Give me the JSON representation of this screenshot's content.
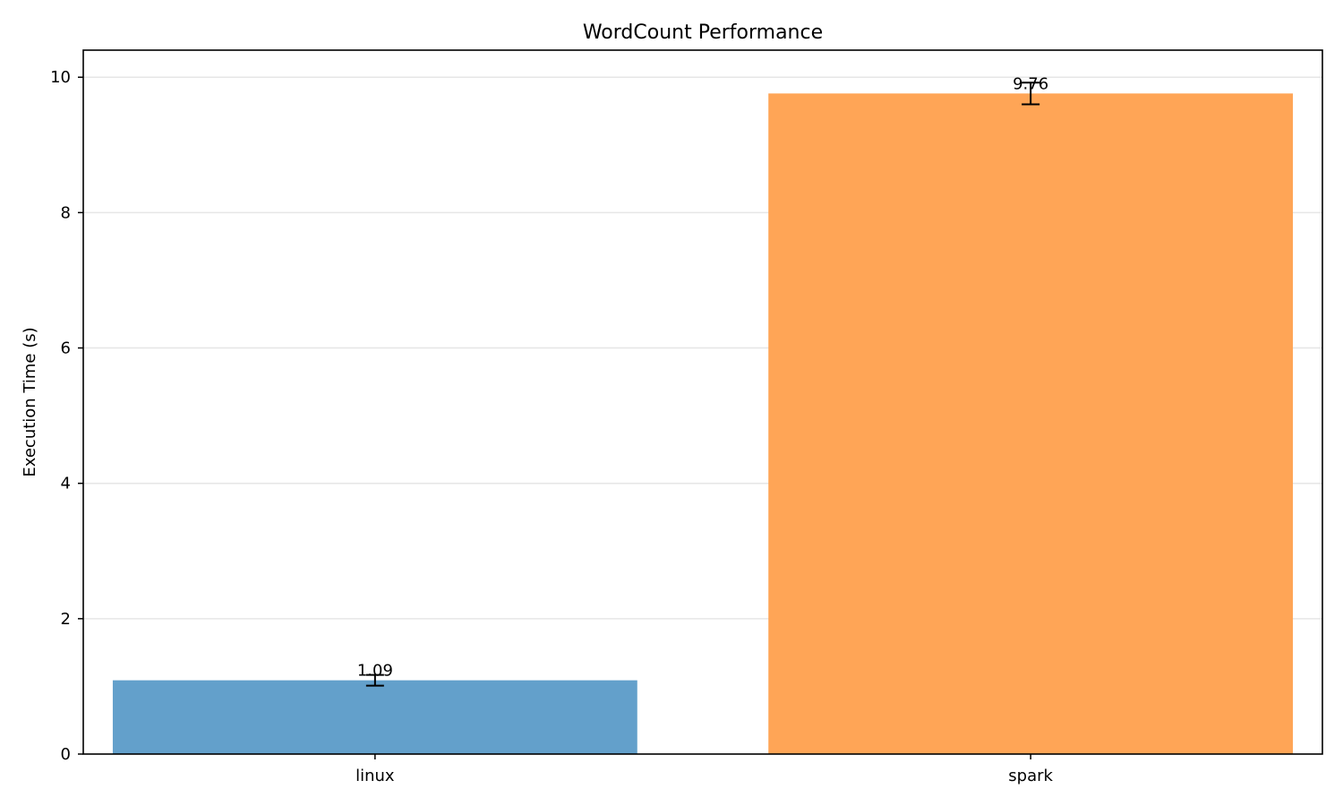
{
  "chart_data": {
    "type": "bar",
    "title": "WordCount Performance",
    "xlabel": "",
    "ylabel": "Execution Time (s)",
    "categories": [
      "linux",
      "spark"
    ],
    "values": [
      1.09,
      9.76
    ],
    "error": [
      0.08,
      0.16
    ],
    "value_labels": [
      "1.09",
      "9.76"
    ],
    "colors": [
      "#63a0cb",
      "#ffa556"
    ],
    "ylim": [
      0,
      10.4
    ],
    "yticks": [
      0,
      2,
      4,
      6,
      8,
      10
    ],
    "ytick_labels": [
      "0",
      "2",
      "4",
      "6",
      "8",
      "10"
    ],
    "grid": "y",
    "legend": "none"
  }
}
